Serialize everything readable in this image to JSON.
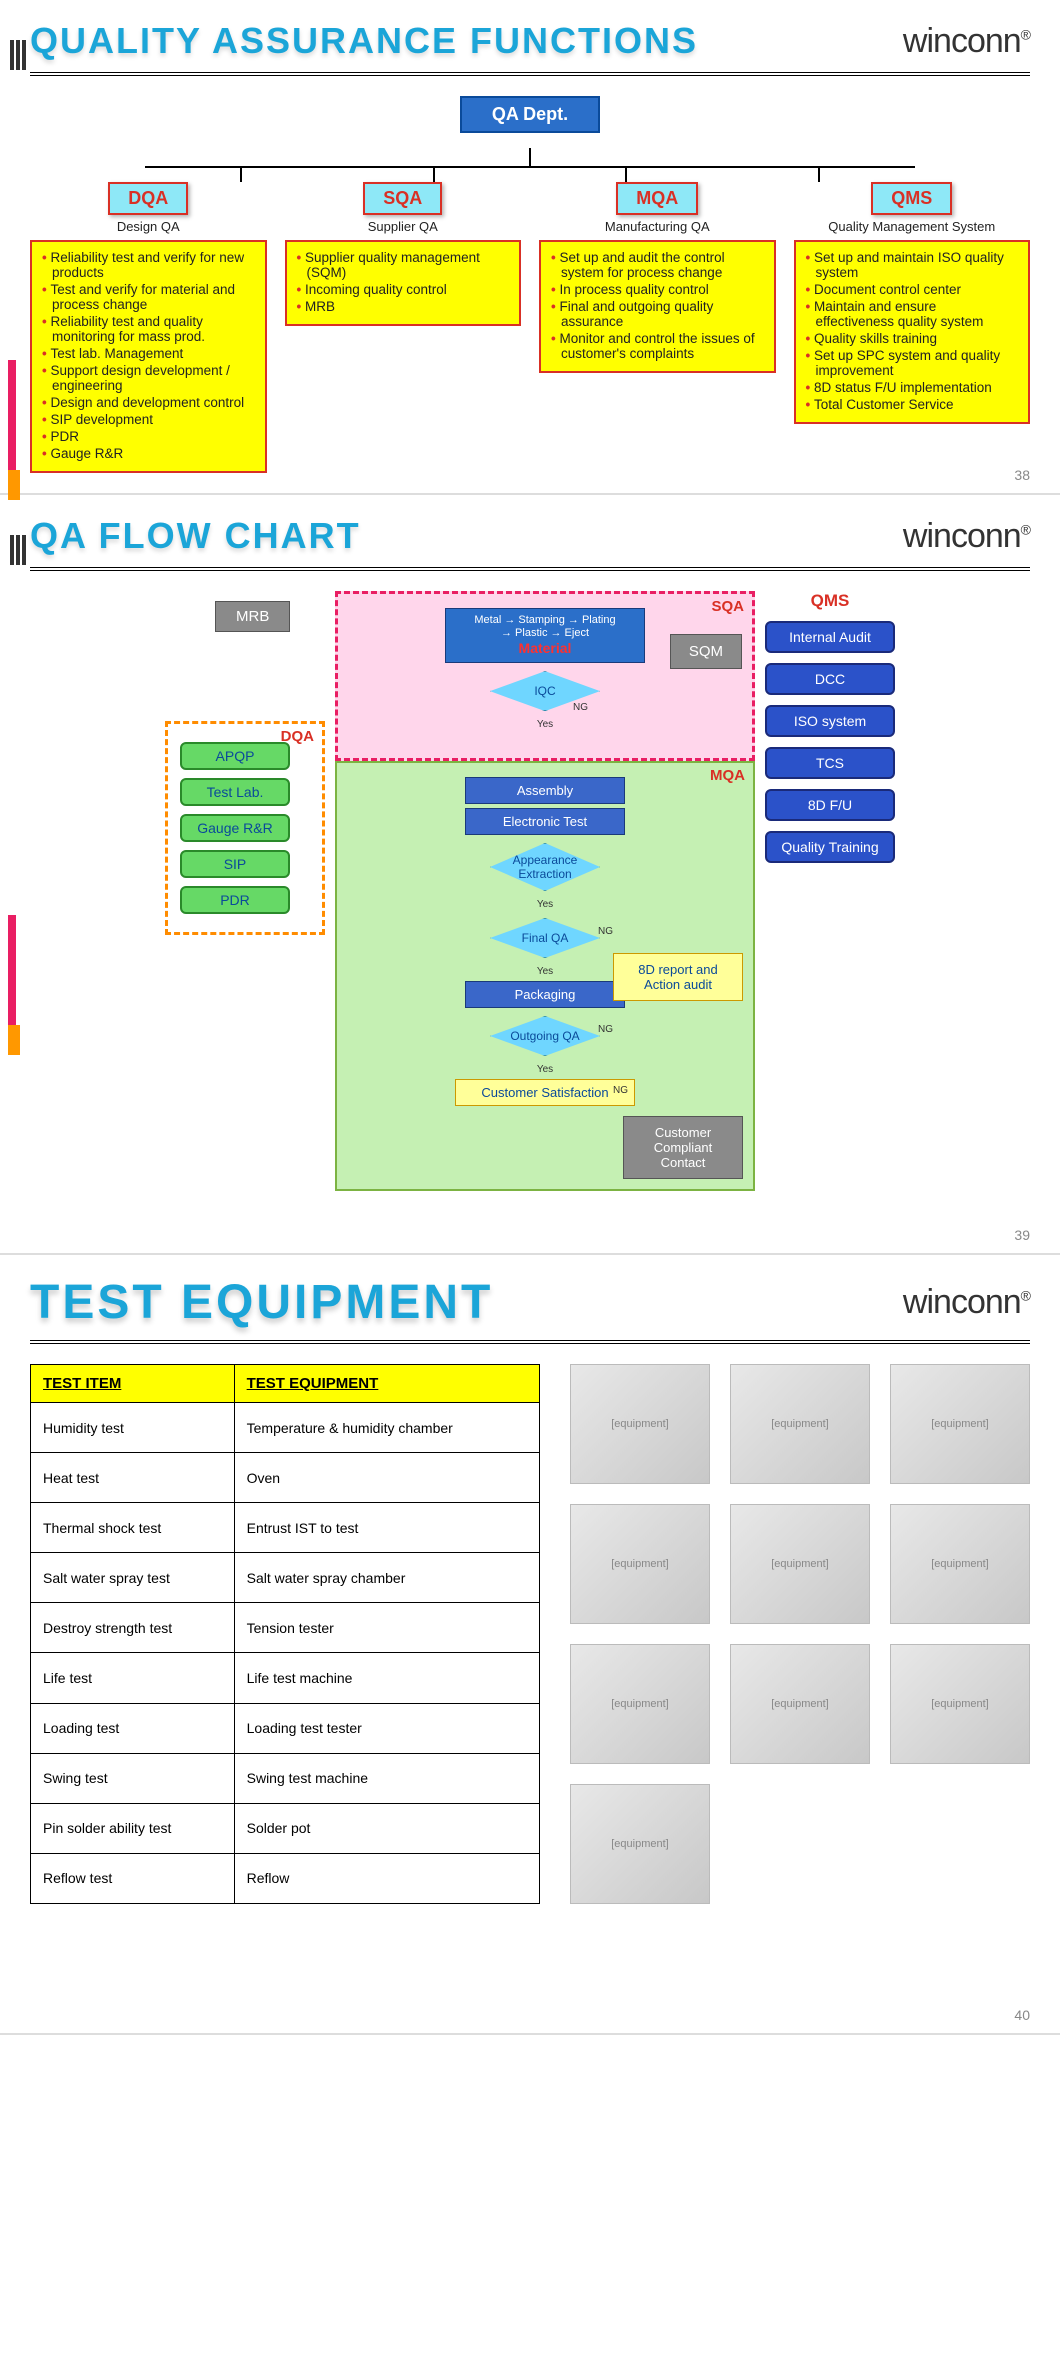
{
  "brand": "winconn",
  "brand_mark": "®",
  "slide1": {
    "title": "QUALITY ASSURANCE FUNCTIONS",
    "root": "QA Dept.",
    "page": "38",
    "cols": [
      {
        "code": "DQA",
        "sub": "Design QA",
        "items": [
          "Reliability test and verify for new products",
          "Test and verify for material and process change",
          "Reliability test and quality monitoring for mass prod.",
          "Test lab. Management",
          "Support design development / engineering",
          "Design and development control",
          "SIP development",
          "PDR",
          "Gauge R&R"
        ]
      },
      {
        "code": "SQA",
        "sub": "Supplier QA",
        "items": [
          "Supplier quality management (SQM)",
          "Incoming quality control",
          "MRB"
        ]
      },
      {
        "code": "MQA",
        "sub": "Manufacturing QA",
        "items": [
          "Set up and audit the control system for process change",
          "In process quality control",
          "Final and outgoing quality assurance",
          "Monitor and control the issues of customer's complaints"
        ]
      },
      {
        "code": "QMS",
        "sub": "Quality Management System",
        "items": [
          "Set up and maintain ISO quality system",
          "Document control center",
          "Maintain and ensure effectiveness quality system",
          "Quality skills training",
          "Set up SPC system and quality improvement",
          "8D status F/U implementation",
          "Total Customer Service"
        ]
      }
    ]
  },
  "slide2": {
    "title": "QA FLOW CHART",
    "page": "39",
    "mrb": "MRB",
    "dqa_label": "DQA",
    "dqa_items": [
      "APQP",
      "Test Lab.",
      "Gauge R&R",
      "SIP",
      "PDR"
    ],
    "sqa_label": "SQA",
    "sqa_material_top": "Metal → Stamping → Plating",
    "sqa_material_mid": "→ Plastic → Eject",
    "sqa_material": "Material",
    "iqc": "IQC",
    "sqm": "SQM",
    "mqa_label": "MQA",
    "mqa_steps": {
      "assembly": "Assembly",
      "etest": "Electronic Test",
      "appearance": "Appearance Extraction",
      "finalqa": "Final QA",
      "packaging": "Packaging",
      "outgoing": "Outgoing QA",
      "satisfaction": "Customer Satisfaction"
    },
    "yes": "Yes",
    "ng": "NG",
    "action": "8D report and Action audit",
    "contact": "Customer Compliant Contact",
    "qms_label": "QMS",
    "qms_items": [
      "Internal Audit",
      "DCC",
      "ISO system",
      "TCS",
      "8D F/U",
      "Quality Training"
    ]
  },
  "slide3": {
    "title": "TEST EQUIPMENT",
    "page": "40",
    "headers": [
      "TEST ITEM",
      "TEST EQUIPMENT"
    ],
    "rows": [
      [
        "Humidity test",
        "Temperature & humidity chamber"
      ],
      [
        "Heat test",
        "Oven"
      ],
      [
        "Thermal shock test",
        "Entrust IST to test"
      ],
      [
        "Salt water spray test",
        "Salt water spray chamber"
      ],
      [
        "Destroy strength test",
        "Tension tester"
      ],
      [
        "Life test",
        "Life test machine"
      ],
      [
        "Loading test",
        "Loading test tester"
      ],
      [
        "Swing test",
        "Swing test machine"
      ],
      [
        "Pin solder ability test",
        "Solder pot"
      ],
      [
        "Reflow test",
        "Reflow"
      ]
    ],
    "equip_count": 10
  },
  "colors": {
    "title": "#1ba5d8",
    "cyan_box": "#8ee8f7",
    "red_border": "#d93025",
    "yellow": "#ffff00",
    "root_blue": "#2b6fc9",
    "dqa_green": "#66d966",
    "qms_blue": "#2b52c9",
    "sqa_pink": "#ffd6eb",
    "mqa_green": "#c5f0b3",
    "diamond": "#6fd6ff",
    "gray": "#8a8a8a"
  }
}
